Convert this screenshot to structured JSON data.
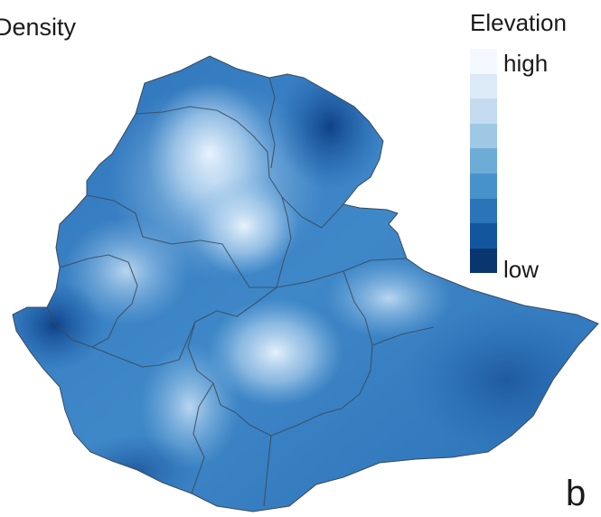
{
  "map": {
    "title": "Density",
    "panel_letter": "b",
    "subject": "Ethiopia elevation map with regional boundaries",
    "shading": "blue gradient; lighter = higher elevation, darker = lower elevation",
    "colors": {
      "outline": "#3a4a5c",
      "land_mid": "#3f84c4"
    }
  },
  "legend": {
    "title": "Elevation",
    "high_label": "high",
    "low_label": "low",
    "placement": "top-right",
    "swatches": [
      "#f4f9ff",
      "#dceaf8",
      "#c4dbf0",
      "#9fc8e4",
      "#6eacd8",
      "#4892cc",
      "#2c74b8",
      "#1356a0",
      "#0a3670"
    ]
  }
}
